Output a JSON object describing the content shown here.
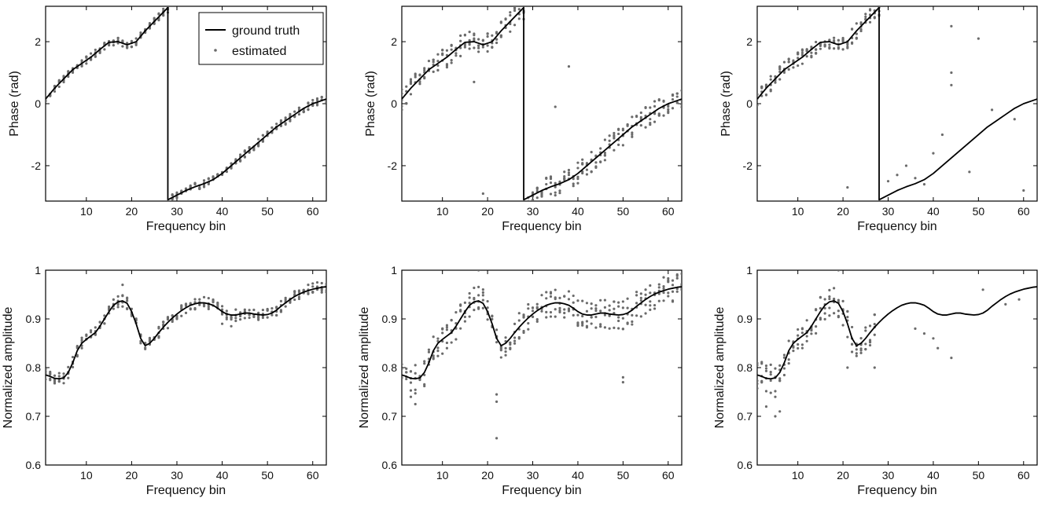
{
  "chart_data": [
    {
      "panel": "top-left",
      "type": "line",
      "xlabel": "Frequency bin",
      "ylabel": "Phase (rad)",
      "xlim": [
        1,
        63
      ],
      "ylim": [
        -3.1416,
        3.1416
      ],
      "xticks": [
        10,
        20,
        30,
        40,
        50,
        60
      ],
      "yticks": [
        -2,
        0,
        2
      ],
      "legend": {
        "placement": "top-right",
        "entries": [
          "ground truth",
          "estimated"
        ]
      },
      "series": [
        {
          "name": "ground truth",
          "style": "line",
          "x": [
            1,
            3,
            5,
            7,
            9,
            11,
            13,
            15,
            17,
            19,
            21,
            23,
            25,
            27,
            28,
            28,
            30,
            32,
            34,
            36,
            38,
            40,
            42,
            44,
            46,
            48,
            50,
            52,
            54,
            56,
            58,
            60,
            62,
            63
          ],
          "y": [
            0.15,
            0.5,
            0.8,
            1.1,
            1.3,
            1.5,
            1.75,
            1.98,
            2.0,
            1.9,
            2.0,
            2.35,
            2.65,
            2.95,
            3.1,
            -3.1,
            -2.95,
            -2.8,
            -2.68,
            -2.58,
            -2.45,
            -2.25,
            -2.0,
            -1.75,
            -1.5,
            -1.25,
            -1.0,
            -0.75,
            -0.55,
            -0.35,
            -0.15,
            0.0,
            0.1,
            0.15
          ]
        },
        {
          "name": "estimated",
          "style": "points",
          "spread": 0.12,
          "outliers": []
        }
      ]
    },
    {
      "panel": "top-middle",
      "type": "line",
      "xlabel": "Frequency bin",
      "ylabel": "Phase (rad)",
      "xlim": [
        1,
        63
      ],
      "ylim": [
        -3.1416,
        3.1416
      ],
      "xticks": [
        10,
        20,
        30,
        40,
        50,
        60
      ],
      "yticks": [
        -2,
        0,
        2
      ],
      "series": [
        {
          "name": "ground truth",
          "style": "line",
          "x": [
            1,
            3,
            5,
            7,
            9,
            11,
            13,
            15,
            17,
            19,
            21,
            23,
            25,
            27,
            28,
            28,
            30,
            32,
            34,
            36,
            38,
            40,
            42,
            44,
            46,
            48,
            50,
            52,
            54,
            56,
            58,
            60,
            62,
            63
          ],
          "y": [
            0.15,
            0.5,
            0.8,
            1.1,
            1.3,
            1.5,
            1.75,
            1.98,
            2.0,
            1.9,
            2.0,
            2.35,
            2.65,
            2.95,
            3.1,
            -3.1,
            -2.95,
            -2.8,
            -2.68,
            -2.58,
            -2.45,
            -2.25,
            -2.0,
            -1.75,
            -1.5,
            -1.25,
            -1.0,
            -0.75,
            -0.55,
            -0.35,
            -0.15,
            0.0,
            0.1,
            0.15
          ]
        },
        {
          "name": "estimated",
          "style": "points",
          "spread": 0.35,
          "outliers": [
            [
              17,
              0.7
            ],
            [
              19,
              -2.9
            ],
            [
              35,
              -0.1
            ],
            [
              38,
              1.2
            ]
          ]
        }
      ]
    },
    {
      "panel": "top-right",
      "type": "line",
      "xlabel": "Frequency bin",
      "ylabel": "Phase (rad)",
      "xlim": [
        1,
        63
      ],
      "ylim": [
        -3.1416,
        3.1416
      ],
      "xticks": [
        10,
        20,
        30,
        40,
        50,
        60
      ],
      "yticks": [
        -2,
        0,
        2
      ],
      "series": [
        {
          "name": "ground truth",
          "style": "line",
          "x": [
            1,
            3,
            5,
            7,
            9,
            11,
            13,
            15,
            17,
            19,
            21,
            23,
            25,
            27,
            28,
            28,
            30,
            32,
            34,
            36,
            38,
            40,
            42,
            44,
            46,
            48,
            50,
            52,
            54,
            56,
            58,
            60,
            62,
            63
          ],
          "y": [
            0.15,
            0.5,
            0.8,
            1.1,
            1.3,
            1.5,
            1.75,
            1.98,
            2.0,
            1.9,
            2.0,
            2.35,
            2.65,
            2.95,
            3.1,
            -3.1,
            -2.95,
            -2.8,
            -2.68,
            -2.58,
            -2.45,
            -2.25,
            -2.0,
            -1.75,
            -1.5,
            -1.25,
            -1.0,
            -0.75,
            -0.55,
            -0.35,
            -0.15,
            0.0,
            0.1,
            0.15
          ]
        },
        {
          "name": "estimated",
          "style": "points",
          "spread": 0.25,
          "sparse_after": 28,
          "outliers": [
            [
              21,
              -2.7
            ],
            [
              30,
              -2.5
            ],
            [
              32,
              -2.3
            ],
            [
              34,
              -2.0
            ],
            [
              36,
              -2.4
            ],
            [
              38,
              -2.6
            ],
            [
              40,
              -1.6
            ],
            [
              42,
              -1.0
            ],
            [
              44,
              0.6
            ],
            [
              44,
              1.0
            ],
            [
              44,
              2.5
            ],
            [
              48,
              -2.2
            ],
            [
              50,
              2.1
            ],
            [
              53,
              -0.2
            ],
            [
              58,
              -0.5
            ],
            [
              60,
              -2.8
            ]
          ]
        }
      ]
    },
    {
      "panel": "bottom-left",
      "type": "line",
      "xlabel": "Frequency bin",
      "ylabel": "Normalized amplitude",
      "xlim": [
        1,
        63
      ],
      "ylim": [
        0.6,
        1.0
      ],
      "xticks": [
        10,
        20,
        30,
        40,
        50,
        60
      ],
      "yticks": [
        0.6,
        0.7,
        0.8,
        0.9,
        1
      ],
      "series": [
        {
          "name": "ground truth",
          "style": "line",
          "x": [
            1,
            2,
            3,
            4,
            5,
            6,
            7,
            8,
            9,
            10,
            11,
            12,
            13,
            14,
            15,
            16,
            17,
            18,
            19,
            20,
            21,
            22,
            23,
            24,
            25,
            26,
            27,
            28,
            29,
            30,
            31,
            32,
            33,
            34,
            35,
            36,
            37,
            38,
            39,
            40,
            41,
            42,
            43,
            44,
            45,
            46,
            47,
            48,
            49,
            50,
            51,
            52,
            53,
            54,
            55,
            56,
            57,
            58,
            59,
            60,
            61,
            62,
            63
          ],
          "y": [
            0.785,
            0.782,
            0.778,
            0.777,
            0.779,
            0.79,
            0.81,
            0.835,
            0.85,
            0.858,
            0.865,
            0.872,
            0.885,
            0.9,
            0.915,
            0.928,
            0.935,
            0.937,
            0.932,
            0.915,
            0.89,
            0.86,
            0.845,
            0.85,
            0.86,
            0.872,
            0.883,
            0.893,
            0.902,
            0.91,
            0.917,
            0.923,
            0.928,
            0.931,
            0.933,
            0.933,
            0.931,
            0.928,
            0.922,
            0.915,
            0.91,
            0.908,
            0.908,
            0.91,
            0.912,
            0.912,
            0.91,
            0.909,
            0.908,
            0.909,
            0.912,
            0.918,
            0.926,
            0.933,
            0.94,
            0.946,
            0.951,
            0.955,
            0.958,
            0.961,
            0.963,
            0.965,
            0.966
          ]
        },
        {
          "name": "estimated",
          "style": "points",
          "spread": 0.012,
          "outliers": [
            [
              18,
              0.97
            ],
            [
              40,
              0.89
            ],
            [
              42,
              0.885
            ]
          ]
        }
      ]
    },
    {
      "panel": "bottom-middle",
      "type": "line",
      "xlabel": "Frequency bin",
      "ylabel": "Normalized amplitude",
      "xlim": [
        1,
        63
      ],
      "ylim": [
        0.6,
        1.0
      ],
      "xticks": [
        10,
        20,
        30,
        40,
        50,
        60
      ],
      "yticks": [
        0.6,
        0.7,
        0.8,
        0.9,
        1
      ],
      "series": [
        {
          "name": "ground truth",
          "style": "line",
          "x": [
            1,
            2,
            3,
            4,
            5,
            6,
            7,
            8,
            9,
            10,
            11,
            12,
            13,
            14,
            15,
            16,
            17,
            18,
            19,
            20,
            21,
            22,
            23,
            24,
            25,
            26,
            27,
            28,
            29,
            30,
            31,
            32,
            33,
            34,
            35,
            36,
            37,
            38,
            39,
            40,
            41,
            42,
            43,
            44,
            45,
            46,
            47,
            48,
            49,
            50,
            51,
            52,
            53,
            54,
            55,
            56,
            57,
            58,
            59,
            60,
            61,
            62,
            63
          ],
          "y": [
            0.785,
            0.782,
            0.778,
            0.777,
            0.779,
            0.79,
            0.81,
            0.835,
            0.85,
            0.858,
            0.865,
            0.872,
            0.885,
            0.9,
            0.915,
            0.928,
            0.935,
            0.937,
            0.932,
            0.915,
            0.89,
            0.86,
            0.845,
            0.85,
            0.86,
            0.872,
            0.883,
            0.893,
            0.902,
            0.91,
            0.917,
            0.923,
            0.928,
            0.931,
            0.933,
            0.933,
            0.931,
            0.928,
            0.922,
            0.915,
            0.91,
            0.908,
            0.908,
            0.91,
            0.912,
            0.912,
            0.91,
            0.909,
            0.908,
            0.909,
            0.912,
            0.918,
            0.926,
            0.933,
            0.94,
            0.946,
            0.951,
            0.955,
            0.958,
            0.961,
            0.963,
            0.965,
            0.966
          ]
        },
        {
          "name": "estimated",
          "style": "points",
          "spread": 0.03,
          "outliers": [
            [
              22,
              0.655
            ],
            [
              22,
              0.73
            ],
            [
              22,
              0.745
            ],
            [
              3,
              0.74
            ],
            [
              4,
              0.725
            ],
            [
              50,
              0.77
            ],
            [
              50,
              0.78
            ],
            [
              18,
              1.0
            ]
          ]
        }
      ]
    },
    {
      "panel": "bottom-right",
      "type": "line",
      "xlabel": "Frequency bin",
      "ylabel": "Normalized amplitude",
      "xlim": [
        1,
        63
      ],
      "ylim": [
        0.6,
        1.0
      ],
      "xticks": [
        10,
        20,
        30,
        40,
        50,
        60
      ],
      "yticks": [
        0.6,
        0.7,
        0.8,
        0.9,
        1
      ],
      "series": [
        {
          "name": "ground truth",
          "style": "line",
          "x": [
            1,
            2,
            3,
            4,
            5,
            6,
            7,
            8,
            9,
            10,
            11,
            12,
            13,
            14,
            15,
            16,
            17,
            18,
            19,
            20,
            21,
            22,
            23,
            24,
            25,
            26,
            27,
            28,
            29,
            30,
            31,
            32,
            33,
            34,
            35,
            36,
            37,
            38,
            39,
            40,
            41,
            42,
            43,
            44,
            45,
            46,
            47,
            48,
            49,
            50,
            51,
            52,
            53,
            54,
            55,
            56,
            57,
            58,
            59,
            60,
            61,
            62,
            63
          ],
          "y": [
            0.785,
            0.782,
            0.778,
            0.777,
            0.779,
            0.79,
            0.81,
            0.835,
            0.85,
            0.858,
            0.865,
            0.872,
            0.885,
            0.9,
            0.915,
            0.928,
            0.935,
            0.937,
            0.932,
            0.915,
            0.89,
            0.86,
            0.845,
            0.85,
            0.86,
            0.872,
            0.883,
            0.893,
            0.902,
            0.91,
            0.917,
            0.923,
            0.928,
            0.931,
            0.933,
            0.933,
            0.931,
            0.928,
            0.922,
            0.915,
            0.91,
            0.908,
            0.908,
            0.91,
            0.912,
            0.912,
            0.91,
            0.909,
            0.908,
            0.909,
            0.912,
            0.918,
            0.926,
            0.933,
            0.94,
            0.946,
            0.951,
            0.955,
            0.958,
            0.961,
            0.963,
            0.965,
            0.966
          ]
        },
        {
          "name": "estimated",
          "style": "points",
          "spread": 0.03,
          "sparse_after": 27,
          "outliers": [
            [
              3,
              0.72
            ],
            [
              5,
              0.7
            ],
            [
              5,
              0.74
            ],
            [
              6,
              0.71
            ],
            [
              19,
              1.0
            ],
            [
              21,
              0.8
            ],
            [
              24,
              0.83
            ],
            [
              27,
              0.8
            ],
            [
              36,
              0.88
            ],
            [
              38,
              0.87
            ],
            [
              40,
              0.86
            ],
            [
              41,
              0.84
            ],
            [
              44,
              0.82
            ],
            [
              51,
              0.96
            ],
            [
              56,
              0.93
            ],
            [
              59,
              0.94
            ]
          ]
        }
      ]
    }
  ]
}
